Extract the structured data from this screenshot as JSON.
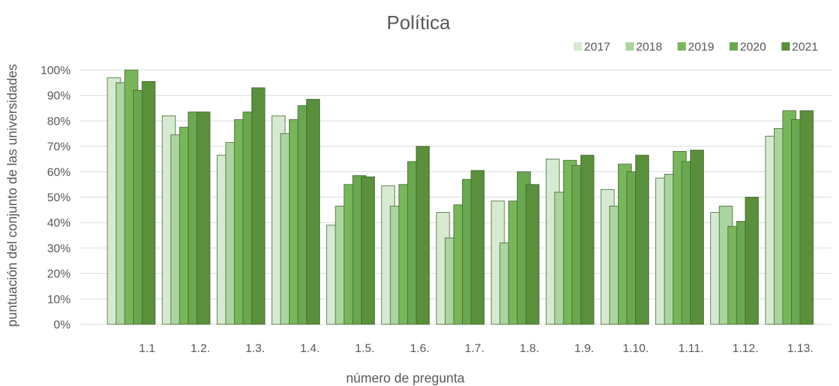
{
  "chart_data": {
    "type": "bar",
    "title": "Política",
    "xlabel": "número de pregunta",
    "ylabel": "puntuación del conjunto de las universidades",
    "categories": [
      "1.1",
      "1.2.",
      "1.3.",
      "1.4.",
      "1.5.",
      "1.6.",
      "1.7.",
      "1.8.",
      "1.9.",
      "1.10.",
      "1.11.",
      "1.12.",
      "1.13."
    ],
    "series": [
      {
        "name": "2017",
        "color": "#d5ead0",
        "values": [
          97,
          82,
          66.5,
          82,
          39,
          54.5,
          44,
          48.5,
          65,
          53,
          57.5,
          44,
          74
        ]
      },
      {
        "name": "2018",
        "color": "#aad59f",
        "values": [
          95,
          74.5,
          71.5,
          75,
          46.5,
          46.5,
          34,
          32,
          52,
          46.5,
          59,
          46.5,
          77
        ]
      },
      {
        "name": "2019",
        "color": "#78b65a",
        "values": [
          100,
          77.5,
          80.5,
          80.5,
          55,
          55,
          47,
          48.5,
          64.5,
          63,
          68,
          38.5,
          84
        ]
      },
      {
        "name": "2020",
        "color": "#6aa84f",
        "values": [
          92,
          83.5,
          83.5,
          86,
          58.5,
          64,
          57,
          60,
          62.5,
          60,
          64,
          40.5,
          80.5
        ]
      },
      {
        "name": "2021",
        "color": "#5a8f3c",
        "values": [
          95.5,
          83.5,
          93,
          88.5,
          58,
          70,
          60.5,
          55,
          66.5,
          66.5,
          68.5,
          50,
          84
        ]
      }
    ],
    "yticks": [
      "0%",
      "10%",
      "20%",
      "30%",
      "40%",
      "50%",
      "60%",
      "70%",
      "80%",
      "90%",
      "100%"
    ],
    "ylim": [
      0,
      100
    ],
    "grid": true,
    "legend_position": "top-right"
  }
}
